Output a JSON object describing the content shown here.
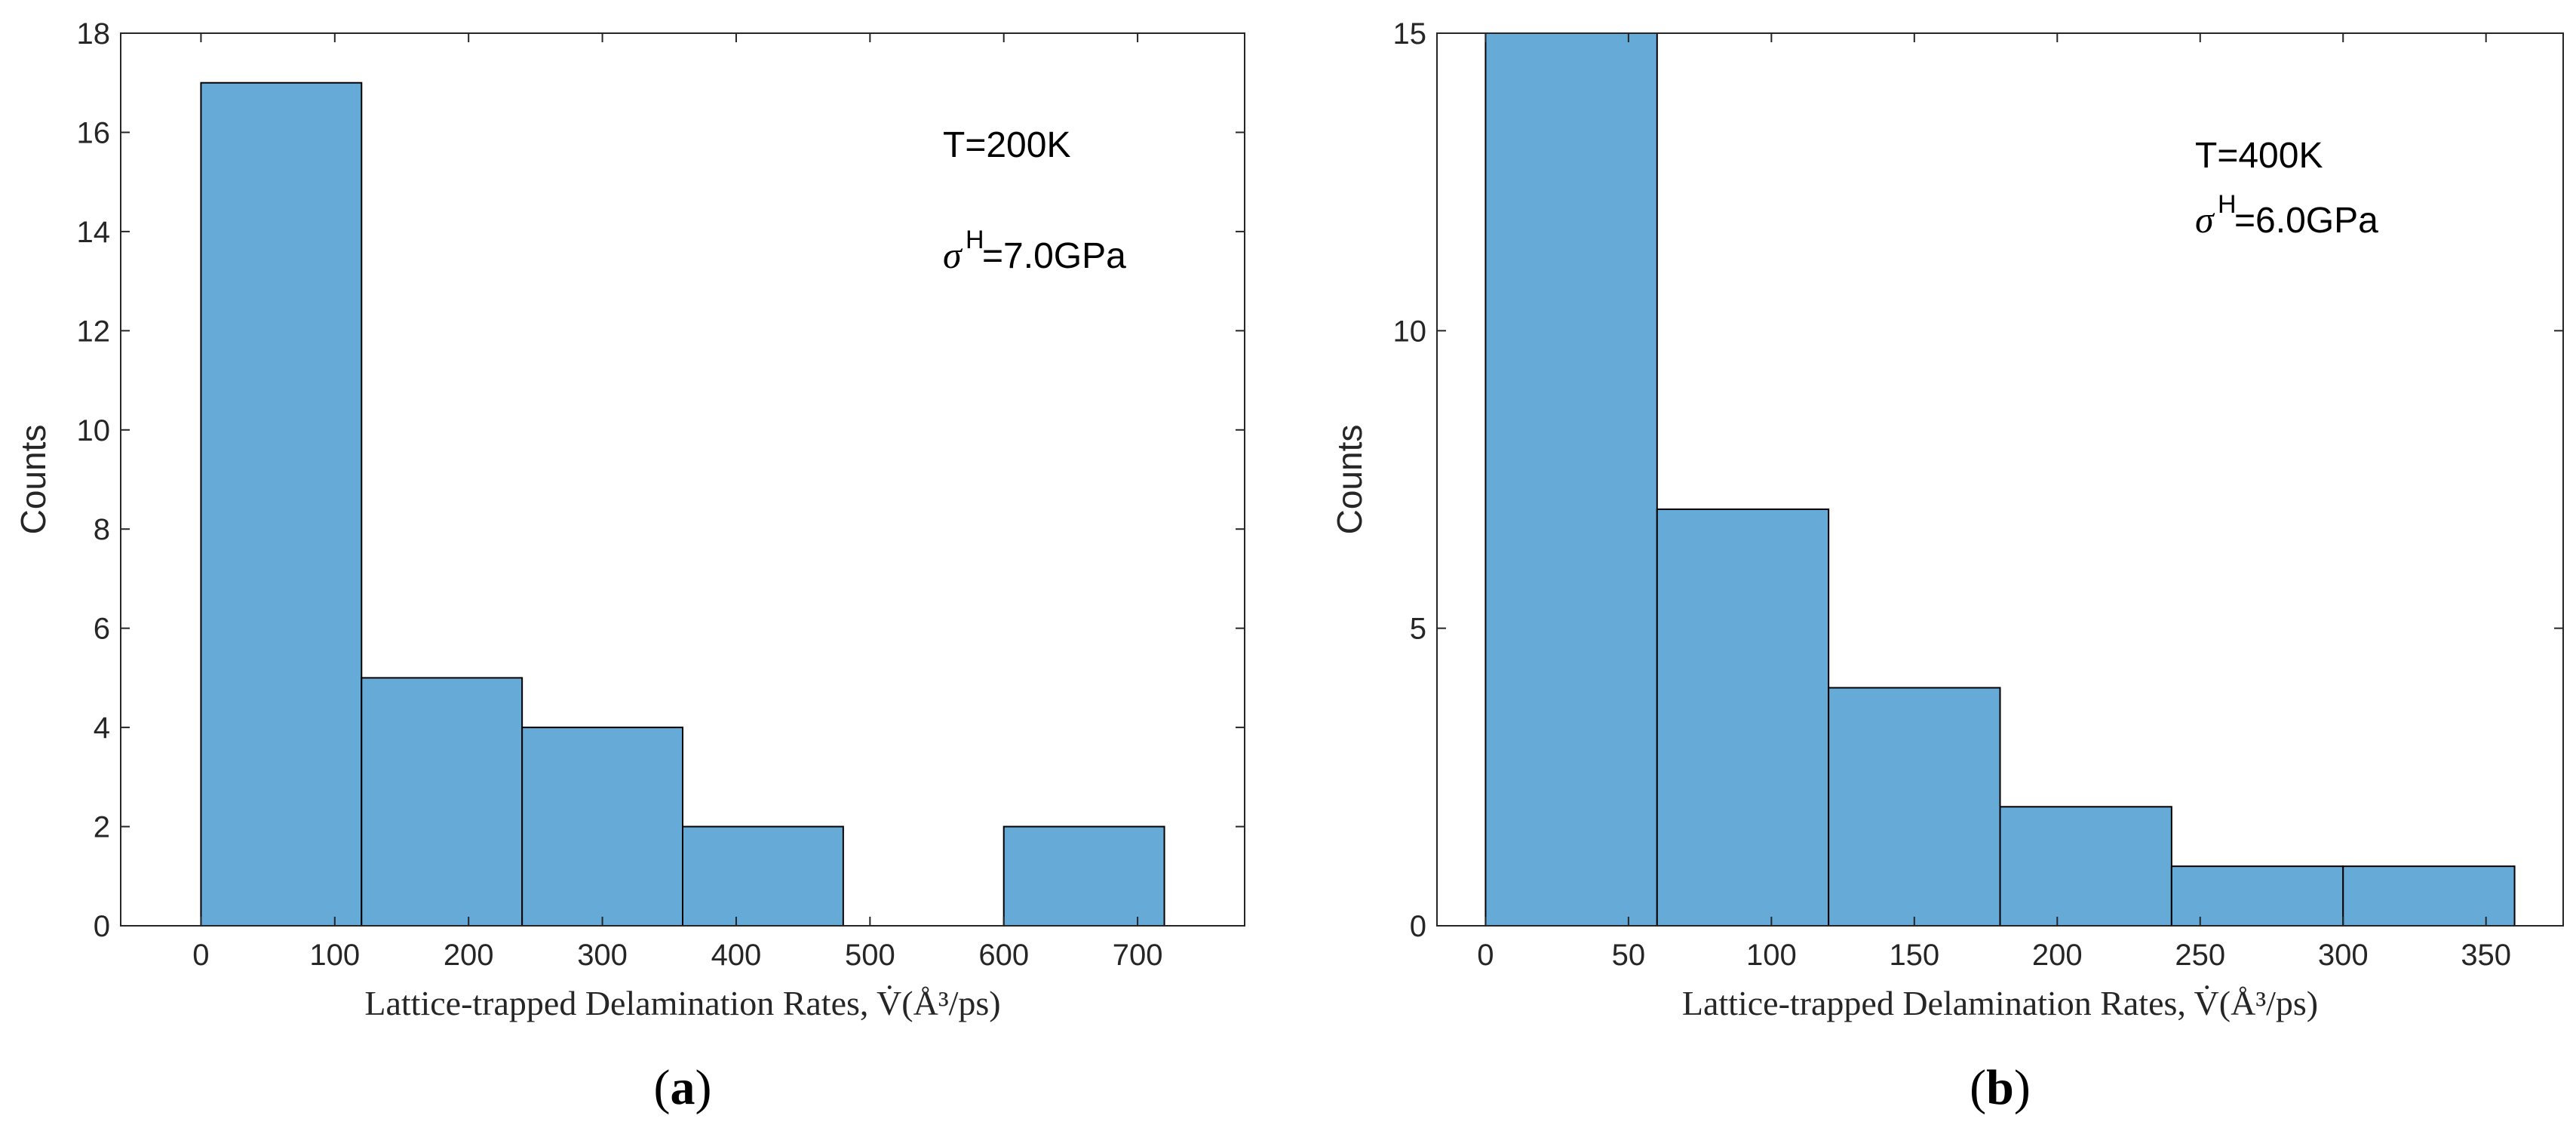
{
  "chart_data": [
    {
      "type": "bar",
      "panel_label": "a",
      "title": "",
      "xlabel": "Lattice-trapped Delamination Rates, V̇(Å³/ps)",
      "ylabel": "Counts",
      "bin_edges": [
        0,
        120,
        240,
        360,
        480,
        600,
        720
      ],
      "values": [
        17,
        5,
        4,
        2,
        0,
        2
      ],
      "xlim": [
        -60,
        780
      ],
      "ylim": [
        0,
        18
      ],
      "xticks": [
        0,
        100,
        200,
        300,
        400,
        500,
        600,
        700
      ],
      "yticks": [
        0,
        2,
        4,
        6,
        8,
        10,
        12,
        14,
        16,
        18
      ],
      "bar_color": "#66aad7",
      "annotation": {
        "temperature": "T=200K",
        "stress_symbol": "σ",
        "stress_sup": "H",
        "stress_value": "=7.0GPa"
      }
    },
    {
      "type": "bar",
      "panel_label": "b",
      "title": "",
      "xlabel": "Lattice-trapped Delamination Rates, V̇(Å³/ps)",
      "ylabel": "Counts",
      "bin_edges": [
        0,
        60,
        120,
        180,
        240,
        300,
        360
      ],
      "values": [
        15,
        7,
        4,
        2,
        1,
        1
      ],
      "xlim": [
        -17,
        377
      ],
      "ylim": [
        0,
        15
      ],
      "xticks": [
        0,
        50,
        100,
        150,
        200,
        250,
        300,
        350
      ],
      "yticks": [
        0,
        5,
        10,
        15
      ],
      "bar_color": "#66aad7",
      "annotation": {
        "temperature": "T=400K",
        "stress_symbol": "σ",
        "stress_sup": "H",
        "stress_value": "=6.0GPa"
      }
    }
  ]
}
